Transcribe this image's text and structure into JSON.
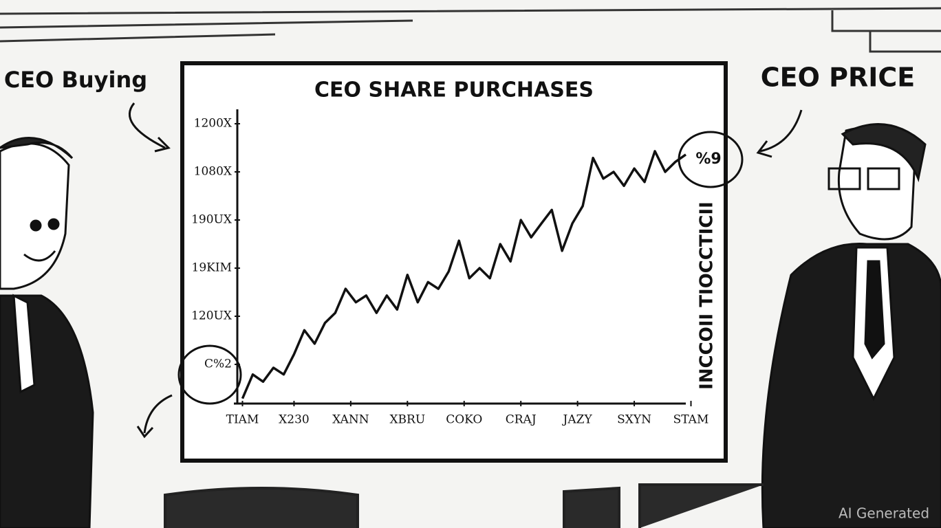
{
  "chart_data": {
    "type": "line",
    "title": "CEO SHARE PURCHASES",
    "annotations": [
      "CEO Buying",
      "CEO PRICE",
      "INCCOII TIOCCTICII",
      "%9",
      "AI Generated"
    ],
    "color": "#111111",
    "xlim": [
      -0.5,
      44
    ],
    "xticks": [
      {
        "value": 0,
        "label": "TIAM"
      },
      {
        "value": 5,
        "label": "X230"
      },
      {
        "value": 10.5,
        "label": "XANN"
      },
      {
        "value": 16,
        "label": "XBRU"
      },
      {
        "value": 21.5,
        "label": "COKO"
      },
      {
        "value": 27,
        "label": "CRAJ"
      },
      {
        "value": 32.5,
        "label": "JAZY"
      },
      {
        "value": 38,
        "label": "SXYN"
      },
      {
        "value": 43.5,
        "label": "STAM"
      }
    ],
    "ylim": [
      -0.7,
      5.3
    ],
    "yticks": [
      {
        "value": 0,
        "label": "C%2"
      },
      {
        "value": 1,
        "label": "120UX"
      },
      {
        "value": 2,
        "label": "19KIM"
      },
      {
        "value": 3,
        "label": "190UX"
      },
      {
        "value": 4,
        "label": "1080X"
      },
      {
        "value": 5,
        "label": "1200X"
      }
    ],
    "x": [
      0,
      1,
      2,
      3,
      4,
      5,
      6,
      7,
      8,
      9,
      10,
      11,
      12,
      13,
      14,
      15,
      16,
      17,
      18,
      19,
      20,
      21,
      22,
      23,
      24,
      25,
      26,
      27,
      28,
      29,
      30,
      31,
      32,
      33,
      34,
      35,
      36,
      37,
      38,
      39,
      40,
      41,
      42,
      43
    ],
    "values": [
      -0.71,
      -0.21,
      -0.36,
      -0.07,
      -0.21,
      0.21,
      0.71,
      0.43,
      0.86,
      1.07,
      1.57,
      1.29,
      1.43,
      1.07,
      1.43,
      1.14,
      1.86,
      1.29,
      1.71,
      1.57,
      1.93,
      2.57,
      1.79,
      2.0,
      1.79,
      2.5,
      2.14,
      3.0,
      2.64,
      2.93,
      3.21,
      2.36,
      2.93,
      3.29,
      4.29,
      3.86,
      4.0,
      3.71,
      4.07,
      3.79,
      4.43,
      4.0,
      4.21,
      4.36
    ]
  }
}
